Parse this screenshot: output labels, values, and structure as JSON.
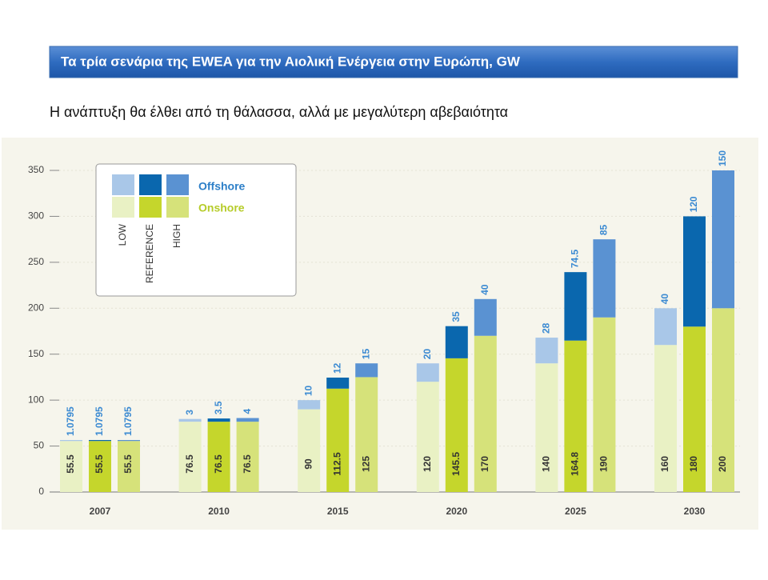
{
  "slide": {
    "title": "Τα τρία σενάρια της EWEA για την Αιολική Ενέργεια στην Ευρώπη, GW",
    "subtitle": "Η ανάπτυξη θα έλθει από τη θάλασσα, αλλά με μεγαλύτερη αβεβαιότητα"
  },
  "chart_data": {
    "type": "bar",
    "stacked": true,
    "categories": [
      "2007",
      "2010",
      "2015",
      "2020",
      "2025",
      "2030"
    ],
    "segments": [
      "Onshore",
      "Offshore"
    ],
    "series": [
      {
        "name": "LOW",
        "colors": [
          "#e9f1c4",
          "#a9c7e8"
        ],
        "values": [
          [
            55.5,
            76.5,
            90,
            120,
            140,
            160
          ],
          [
            1.0795,
            3,
            10,
            20,
            28,
            40
          ]
        ]
      },
      {
        "name": "REFERENCE",
        "colors": [
          "#c5d62c",
          "#0a67ae"
        ],
        "values": [
          [
            55.5,
            76.5,
            112.5,
            145.5,
            164.8,
            180
          ],
          [
            1.0795,
            3.5,
            12,
            35,
            74.5,
            120
          ]
        ]
      },
      {
        "name": "HIGH",
        "colors": [
          "#d6e27a",
          "#5a92d2"
        ],
        "values": [
          [
            55.5,
            76.5,
            125,
            170,
            190,
            200
          ],
          [
            1.0795,
            4,
            15,
            40,
            85,
            150
          ]
        ]
      }
    ],
    "ylim": [
      0,
      350
    ],
    "yticks": [
      0,
      50,
      100,
      150,
      200,
      250,
      300,
      350
    ],
    "grid": true
  }
}
